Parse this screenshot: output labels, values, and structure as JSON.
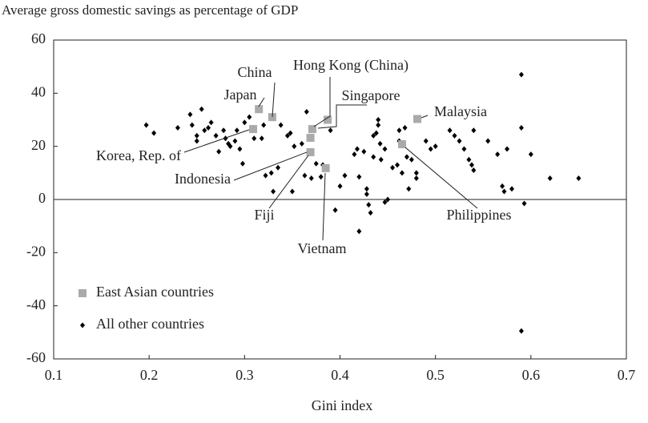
{
  "chart_data": {
    "type": "scatter",
    "title": "Average gross domestic savings as percentage of GDP",
    "x_label": "Gini index",
    "xlim": [
      0.1,
      0.7
    ],
    "xticks": [
      0.1,
      0.2,
      0.3,
      0.4,
      0.5,
      0.6,
      0.7
    ],
    "ylim": [
      -60,
      60
    ],
    "yticks": [
      -60,
      -40,
      -20,
      0,
      20,
      40,
      60
    ],
    "legend": "lower left",
    "annotations": [
      "China",
      "Japan",
      "Hong Kong (China)",
      "Singapore",
      "Malaysia",
      "Korea, Rep. of",
      "Indonesia",
      "Fiji",
      "Vietnam",
      "Philippines"
    ],
    "series": [
      {
        "name": "East Asian countries",
        "color": "#aaaaaa",
        "marker": "square",
        "x": [
          0.329,
          0.315,
          0.387,
          0.371,
          0.481,
          0.309,
          0.369,
          0.369,
          0.385,
          0.465
        ],
        "values": [
          31,
          34,
          30,
          26.5,
          30.3,
          26.5,
          17.8,
          23.2,
          11.8,
          20.8
        ]
      },
      {
        "name": "All other countries",
        "color": "#000000",
        "marker": "diamond",
        "x": [
          0.197,
          0.205,
          0.23,
          0.243,
          0.245,
          0.25,
          0.25,
          0.255,
          0.258,
          0.262,
          0.265,
          0.27,
          0.273,
          0.278,
          0.28,
          0.283,
          0.285,
          0.29,
          0.292,
          0.295,
          0.298,
          0.3,
          0.305,
          0.31,
          0.318,
          0.32,
          0.322,
          0.328,
          0.33,
          0.335,
          0.338,
          0.345,
          0.348,
          0.35,
          0.352,
          0.36,
          0.363,
          0.365,
          0.37,
          0.375,
          0.38,
          0.382,
          0.39,
          0.395,
          0.4,
          0.405,
          0.415,
          0.418,
          0.42,
          0.42,
          0.425,
          0.428,
          0.428,
          0.43,
          0.432,
          0.435,
          0.435,
          0.438,
          0.44,
          0.44,
          0.442,
          0.443,
          0.447,
          0.447,
          0.45,
          0.455,
          0.46,
          0.462,
          0.462,
          0.465,
          0.468,
          0.47,
          0.472,
          0.475,
          0.48,
          0.48,
          0.49,
          0.495,
          0.5,
          0.515,
          0.52,
          0.525,
          0.53,
          0.535,
          0.538,
          0.54,
          0.54,
          0.555,
          0.565,
          0.575,
          0.57,
          0.572,
          0.58,
          0.59,
          0.59,
          0.593,
          0.6,
          0.59,
          0.62,
          0.65
        ],
        "values": [
          28,
          25,
          27,
          32,
          28,
          24,
          22,
          34,
          26,
          27,
          29,
          24,
          18,
          26,
          23,
          21,
          20,
          22,
          26,
          19,
          13.5,
          29,
          31,
          23,
          23,
          28,
          9,
          10,
          3,
          12,
          28,
          24,
          25,
          3,
          20,
          21,
          9,
          33,
          8,
          13.5,
          8.5,
          13,
          26,
          -4,
          5,
          9,
          17,
          19,
          8.5,
          -12,
          18,
          2,
          4,
          -2,
          -5,
          24,
          16,
          25,
          30,
          28,
          21,
          15,
          19,
          -1,
          0,
          12,
          13,
          22,
          26,
          10,
          27,
          16,
          4,
          15,
          8,
          10,
          22,
          19,
          20,
          26,
          24,
          22,
          19,
          15,
          13,
          26,
          11,
          22,
          17,
          19,
          5,
          3,
          4,
          47,
          27,
          -1.5,
          17,
          -49.5,
          8,
          8
        ]
      }
    ]
  }
}
